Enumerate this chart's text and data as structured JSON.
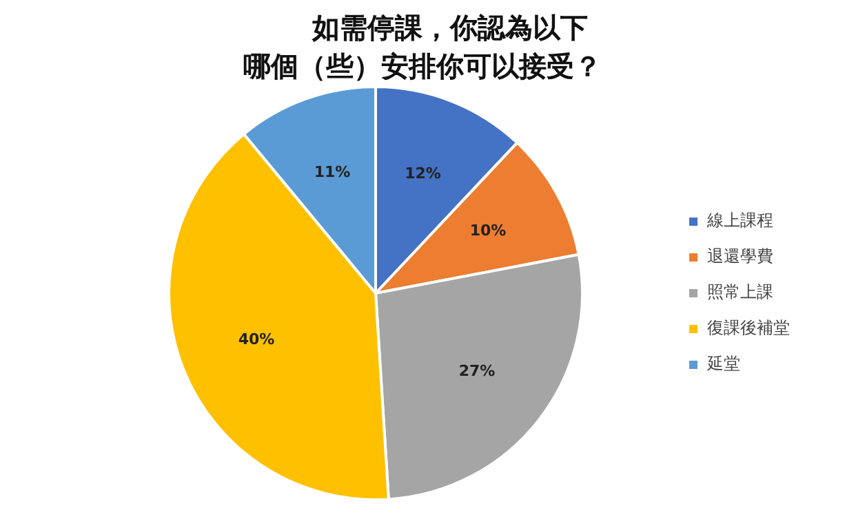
{
  "chart_data": {
    "type": "pie",
    "title": "如需停課，你認為以下哪個（些）安排你可以接受？",
    "categories": [
      "線上課程",
      "退還學費",
      "照常上課",
      "復課後補堂",
      "延堂"
    ],
    "values": [
      12,
      10,
      27,
      40,
      11
    ],
    "colors": [
      "#4472c4",
      "#ed7d31",
      "#a5a5a5",
      "#ffc000",
      "#5b9bd5"
    ],
    "value_labels": [
      "12%",
      "10%",
      "27%",
      "40%",
      "11%"
    ],
    "legend": "right"
  }
}
